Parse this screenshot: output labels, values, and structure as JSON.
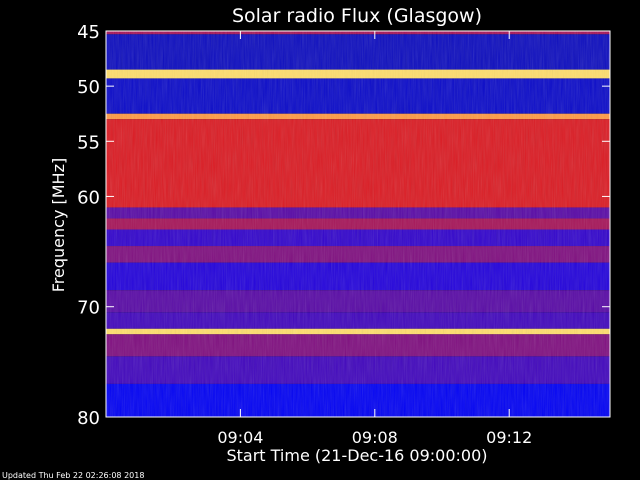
{
  "chart_data": {
    "type": "heatmap",
    "title": "Solar radio Flux (Glasgow)",
    "xlabel": "Start Time (21-Dec-16 09:00:00)",
    "ylabel": "Frequency [MHz]",
    "x_ticks": [
      "09:04",
      "09:08",
      "09:12"
    ],
    "x_tick_minutes": [
      4,
      8,
      12
    ],
    "x_range_minutes": [
      0,
      15
    ],
    "y_ticks": [
      45,
      50,
      55,
      60,
      70,
      80
    ],
    "y_range_mhz": [
      45,
      80
    ],
    "colormap": [
      "#1a1a8a",
      "#0000ff",
      "#ff2000",
      "#ffff80"
    ],
    "bands": [
      {
        "from": 45.0,
        "to": 45.3,
        "level": 0.55
      },
      {
        "from": 45.3,
        "to": 48.5,
        "level": 0.15
      },
      {
        "from": 48.5,
        "to": 49.3,
        "level": 0.95
      },
      {
        "from": 49.3,
        "to": 52.5,
        "level": 0.18
      },
      {
        "from": 52.5,
        "to": 53.0,
        "level": 0.85
      },
      {
        "from": 53.0,
        "to": 61.0,
        "level": 0.62
      },
      {
        "from": 61.0,
        "to": 62.0,
        "level": 0.45
      },
      {
        "from": 62.0,
        "to": 63.0,
        "level": 0.55
      },
      {
        "from": 63.0,
        "to": 64.5,
        "level": 0.4
      },
      {
        "from": 64.5,
        "to": 66.0,
        "level": 0.5
      },
      {
        "from": 66.0,
        "to": 68.5,
        "level": 0.38
      },
      {
        "from": 68.5,
        "to": 70.5,
        "level": 0.45
      },
      {
        "from": 70.5,
        "to": 72.0,
        "level": 0.42
      },
      {
        "from": 72.0,
        "to": 72.5,
        "level": 0.95
      },
      {
        "from": 72.5,
        "to": 74.5,
        "level": 0.5
      },
      {
        "from": 74.5,
        "to": 77.0,
        "level": 0.42
      },
      {
        "from": 77.0,
        "to": 80.0,
        "level": 0.3
      }
    ]
  },
  "footer": {
    "updated": "Updated Thu Feb 22 02:26:08 2018"
  }
}
